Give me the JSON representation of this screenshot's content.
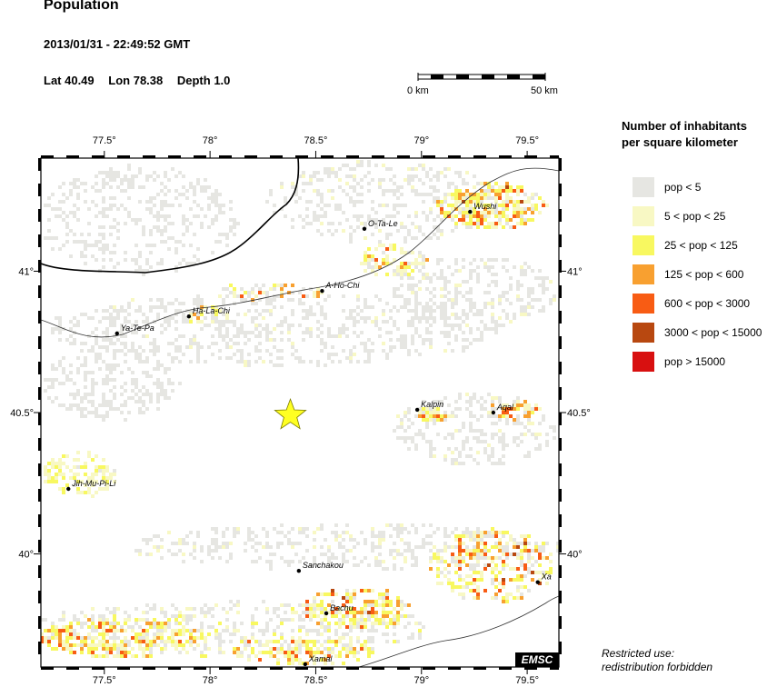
{
  "header": {
    "title": "Population",
    "datetime": "2013/01/31 - 22:49:52 GMT",
    "lat_label": "Lat 40.49",
    "lon_label": "Lon 78.38",
    "depth_label": "Depth  1.0"
  },
  "scale_bar": {
    "left_label": "0 km",
    "right_label": "50 km"
  },
  "map": {
    "lon_range": [
      77.2,
      79.65
    ],
    "lat_range": [
      39.6,
      41.4
    ],
    "lon_ticks": [
      {
        "value": 77.5,
        "label": "77.5°"
      },
      {
        "value": 78.0,
        "label": "78°"
      },
      {
        "value": 78.5,
        "label": "78.5°"
      },
      {
        "value": 79.0,
        "label": "79°"
      },
      {
        "value": 79.5,
        "label": "79.5°"
      }
    ],
    "lat_ticks": [
      {
        "value": 41.0,
        "label": "41°"
      },
      {
        "value": 40.5,
        "label": "40.5°"
      },
      {
        "value": 40.0,
        "label": "40°"
      }
    ],
    "epicenter": {
      "lon": 78.38,
      "lat": 40.49
    },
    "cities": [
      {
        "name": "O-Ta-Le",
        "lon": 78.73,
        "lat": 41.15
      },
      {
        "name": "Wushi",
        "lon": 79.23,
        "lat": 41.21
      },
      {
        "name": "A-Ho-Chi",
        "lon": 78.53,
        "lat": 40.93
      },
      {
        "name": "Ha-La-Chi",
        "lon": 77.9,
        "lat": 40.84
      },
      {
        "name": "Ya-Te-Pa",
        "lon": 77.56,
        "lat": 40.78
      },
      {
        "name": "Kalpin",
        "lon": 78.98,
        "lat": 40.51
      },
      {
        "name": "Aqal",
        "lon": 79.34,
        "lat": 40.5
      },
      {
        "name": "Jih-Mu-Pi-Li",
        "lon": 77.33,
        "lat": 40.23
      },
      {
        "name": "Sanchakou",
        "lon": 78.42,
        "lat": 39.94
      },
      {
        "name": "Bachu",
        "lon": 78.55,
        "lat": 39.79
      },
      {
        "name": "Xamal",
        "lon": 78.45,
        "lat": 39.61
      },
      {
        "name": "Xa",
        "lon": 79.55,
        "lat": 39.9
      }
    ]
  },
  "legend": {
    "title_line1": "Number of inhabitants",
    "title_line2": "per square kilometer",
    "items": [
      {
        "label": "pop < 5",
        "color": "#e6e6e2"
      },
      {
        "label": "5 < pop < 25",
        "color": "#f8f8c4"
      },
      {
        "label": "25 < pop < 125",
        "color": "#f8f860"
      },
      {
        "label": "125 < pop < 600",
        "color": "#f8a030"
      },
      {
        "label": "600 < pop < 3000",
        "color": "#f85c14"
      },
      {
        "label": "3000 < pop < 15000",
        "color": "#b84810"
      },
      {
        "label": "pop > 15000",
        "color": "#d81010"
      }
    ]
  },
  "logo_text": "EMSC",
  "restricted": {
    "line1": "Restricted use:",
    "line2": "redistribution forbidden"
  }
}
